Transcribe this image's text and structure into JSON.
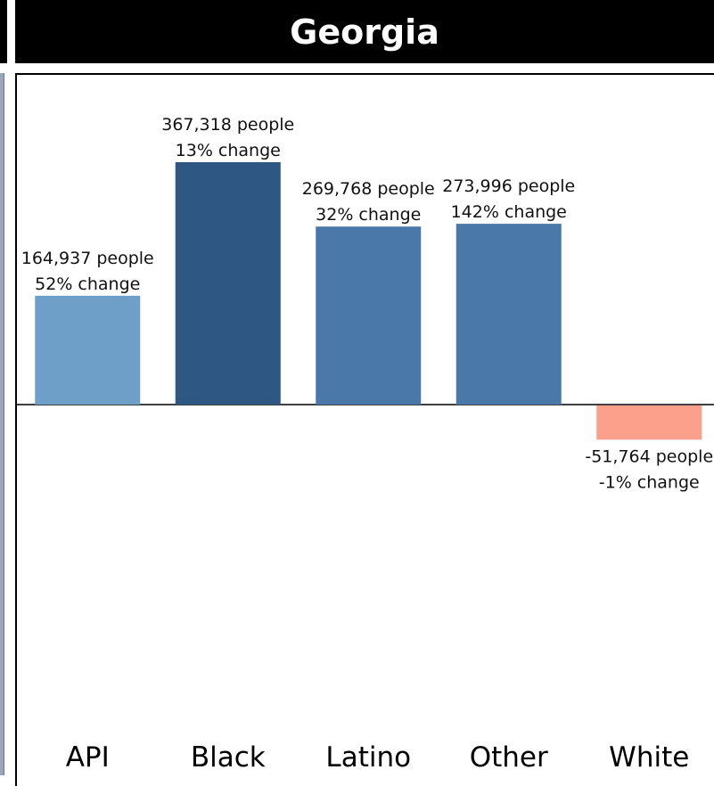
{
  "title": "Georgia",
  "colors": {
    "API": "#6e9fc9",
    "Black": "#2e5784",
    "Latino": "#4a79a9",
    "Other": "#4a79a9",
    "White": "#fca08c"
  },
  "chart_data": {
    "type": "bar",
    "title": "Georgia",
    "xlabel": "",
    "ylabel": "",
    "categories": [
      "API",
      "Black",
      "Latino",
      "Other",
      "White"
    ],
    "values": [
      164937,
      367318,
      269768,
      273996,
      -51764
    ],
    "pct_change": [
      52,
      13,
      32,
      142,
      -1
    ],
    "labels_people": [
      "164,937 people",
      "367,318 people",
      "269,768 people",
      "273,996 people",
      "-51,764 people"
    ],
    "labels_change": [
      "52% change",
      "13% change",
      "32% change",
      "142% change",
      "-1% change"
    ],
    "grid": false,
    "legend": "none"
  }
}
